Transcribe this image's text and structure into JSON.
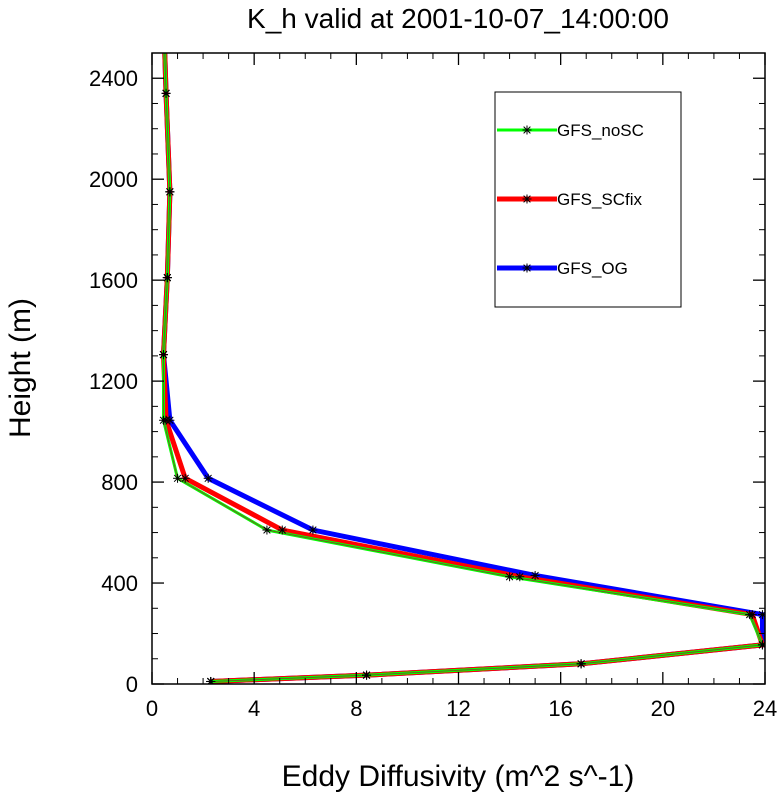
{
  "chart_data": {
    "type": "line",
    "title": "K_h valid at 2001-10-07_14:00:00",
    "xlabel": "Eddy Diffusivity (m^2 s^-1)",
    "ylabel": "Height (m)",
    "xlim": [
      0,
      24
    ],
    "ylim": [
      0,
      2500
    ],
    "xticks": [
      0,
      4,
      8,
      12,
      16,
      20,
      24
    ],
    "yticks": [
      0,
      400,
      800,
      1200,
      1600,
      2000,
      2400
    ],
    "legend_position": "top-right",
    "series": [
      {
        "name": "GFS_OG",
        "color": "#0000ff",
        "x": [
          2.3,
          8.4,
          16.8,
          23.9,
          23.9,
          15.0,
          6.3,
          2.2,
          0.7,
          0.45,
          0.6,
          0.7,
          0.55,
          0.5
        ],
        "y": [
          10,
          35,
          80,
          155,
          275,
          430,
          610,
          815,
          1045,
          1305,
          1610,
          1950,
          2340,
          2500
        ]
      },
      {
        "name": "GFS_SCfix",
        "color": "#ff0000",
        "x": [
          2.3,
          8.4,
          16.8,
          23.9,
          23.5,
          14.4,
          5.1,
          1.3,
          0.55,
          0.45,
          0.6,
          0.7,
          0.55,
          0.5
        ],
        "y": [
          10,
          35,
          80,
          155,
          275,
          425,
          610,
          815,
          1045,
          1305,
          1610,
          1950,
          2340,
          2500
        ]
      },
      {
        "name": "GFS_noSC",
        "color": "#00ff00",
        "x": [
          2.3,
          8.4,
          16.8,
          23.9,
          23.4,
          14.0,
          4.5,
          1.0,
          0.45,
          0.45,
          0.6,
          0.7,
          0.55,
          0.5
        ],
        "y": [
          10,
          35,
          80,
          155,
          275,
          425,
          610,
          815,
          1045,
          1305,
          1610,
          1950,
          2340,
          2500
        ]
      }
    ],
    "legend": [
      "GFS_noSC",
      "GFS_SCfix",
      "GFS_OG"
    ]
  }
}
